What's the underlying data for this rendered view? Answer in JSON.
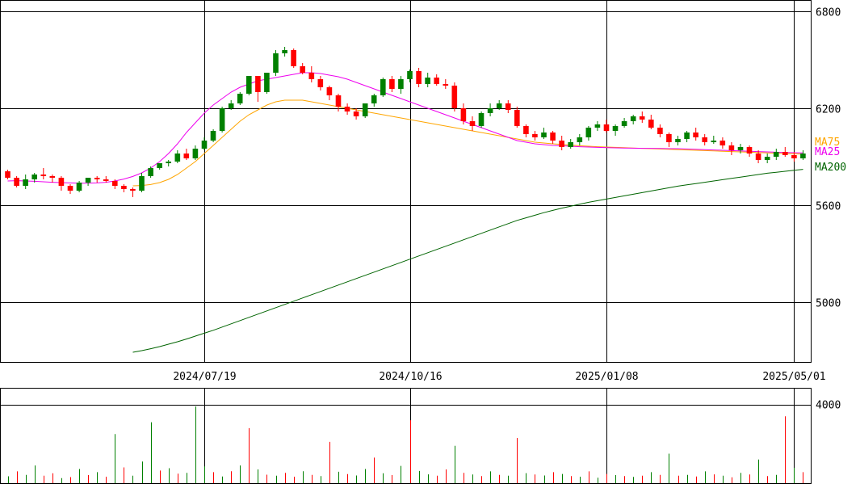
{
  "chart_data": {
    "type": "candlestick",
    "price_axis": {
      "ticks": [
        6800,
        6200,
        5600,
        5000
      ],
      "ylim": [
        4630,
        6870
      ]
    },
    "date_axis": {
      "tick_labels": [
        "2024/07/19",
        "2024/10/16",
        "2025/01/08",
        "2025/05/01"
      ]
    },
    "volume_axis": {
      "ticks": [
        4000
      ],
      "ylim": [
        0,
        4850
      ]
    },
    "colors": {
      "up": "#008000",
      "down": "#ff0000",
      "ma25": "#ee00ee",
      "ma75": "#ffa500",
      "ma200": "#006400",
      "grid": "#000000"
    },
    "series": [
      {
        "name": "MA75",
        "color": "#ffa500"
      },
      {
        "name": "MA25",
        "color": "#ee00ee"
      },
      {
        "name": "MA200",
        "color": "#006400"
      }
    ],
    "candles": [
      [
        5810,
        5770,
        5820,
        5760
      ],
      [
        5770,
        5720,
        5780,
        5710
      ],
      [
        5720,
        5760,
        5790,
        5700
      ],
      [
        5760,
        5790,
        5800,
        5740
      ],
      [
        5790,
        5780,
        5830,
        5760
      ],
      [
        5780,
        5770,
        5790,
        5740
      ],
      [
        5770,
        5720,
        5780,
        5690
      ],
      [
        5720,
        5690,
        5730,
        5670
      ],
      [
        5690,
        5740,
        5750,
        5680
      ],
      [
        5740,
        5770,
        5770,
        5720
      ],
      [
        5770,
        5760,
        5780,
        5740
      ],
      [
        5760,
        5750,
        5780,
        5740
      ],
      [
        5750,
        5720,
        5760,
        5700
      ],
      [
        5720,
        5700,
        5730,
        5680
      ],
      [
        5700,
        5690,
        5710,
        5650
      ],
      [
        5690,
        5780,
        5800,
        5680
      ],
      [
        5780,
        5830,
        5840,
        5770
      ],
      [
        5830,
        5860,
        5860,
        5820
      ],
      [
        5860,
        5870,
        5880,
        5840
      ],
      [
        5870,
        5920,
        5940,
        5860
      ],
      [
        5920,
        5890,
        5950,
        5880
      ],
      [
        5890,
        5950,
        5970,
        5880
      ],
      [
        5950,
        6000,
        6020,
        5940
      ],
      [
        6000,
        6060,
        6070,
        5990
      ],
      [
        6060,
        6200,
        6210,
        6050
      ],
      [
        6200,
        6230,
        6250,
        6190
      ],
      [
        6230,
        6290,
        6300,
        6220
      ],
      [
        6290,
        6400,
        6400,
        6280
      ],
      [
        6400,
        6300,
        6400,
        6240
      ],
      [
        6300,
        6420,
        6420,
        6290
      ],
      [
        6420,
        6540,
        6560,
        6400
      ],
      [
        6540,
        6560,
        6580,
        6520
      ],
      [
        6560,
        6460,
        6570,
        6450
      ],
      [
        6460,
        6420,
        6480,
        6410
      ],
      [
        6420,
        6380,
        6460,
        6360
      ],
      [
        6380,
        6330,
        6400,
        6310
      ],
      [
        6330,
        6280,
        6340,
        6250
      ],
      [
        6280,
        6210,
        6290,
        6180
      ],
      [
        6210,
        6180,
        6230,
        6160
      ],
      [
        6180,
        6150,
        6200,
        6130
      ],
      [
        6150,
        6230,
        6230,
        6140
      ],
      [
        6230,
        6280,
        6290,
        6210
      ],
      [
        6280,
        6380,
        6390,
        6270
      ],
      [
        6380,
        6320,
        6400,
        6300
      ],
      [
        6320,
        6380,
        6400,
        6290
      ],
      [
        6380,
        6430,
        6440,
        6360
      ],
      [
        6430,
        6350,
        6450,
        6330
      ],
      [
        6350,
        6390,
        6420,
        6330
      ],
      [
        6390,
        6350,
        6410,
        6340
      ],
      [
        6350,
        6340,
        6380,
        6320
      ],
      [
        6340,
        6200,
        6360,
        6180
      ],
      [
        6200,
        6120,
        6230,
        6100
      ],
      [
        6120,
        6090,
        6150,
        6060
      ],
      [
        6090,
        6170,
        6180,
        6080
      ],
      [
        6170,
        6200,
        6230,
        6150
      ],
      [
        6200,
        6230,
        6250,
        6190
      ],
      [
        6230,
        6190,
        6250,
        6170
      ],
      [
        6190,
        6090,
        6210,
        6080
      ],
      [
        6090,
        6040,
        6100,
        6020
      ],
      [
        6040,
        6020,
        6060,
        6000
      ],
      [
        6020,
        6050,
        6080,
        6010
      ],
      [
        6050,
        6000,
        6060,
        5980
      ],
      [
        6000,
        5960,
        6030,
        5940
      ],
      [
        5960,
        5990,
        6010,
        5950
      ],
      [
        5990,
        6020,
        6040,
        5970
      ],
      [
        6020,
        6080,
        6090,
        6000
      ],
      [
        6080,
        6100,
        6120,
        6060
      ],
      [
        6100,
        6060,
        6130,
        6050
      ],
      [
        6060,
        6090,
        6100,
        6030
      ],
      [
        6090,
        6120,
        6140,
        6080
      ],
      [
        6120,
        6150,
        6160,
        6100
      ],
      [
        6150,
        6130,
        6180,
        6110
      ],
      [
        6130,
        6080,
        6160,
        6070
      ],
      [
        6080,
        6040,
        6100,
        6020
      ],
      [
        6040,
        5990,
        6050,
        5960
      ],
      [
        5990,
        6010,
        6030,
        5970
      ],
      [
        6010,
        6050,
        6060,
        5990
      ],
      [
        6050,
        6020,
        6080,
        6000
      ],
      [
        6020,
        5990,
        6040,
        5970
      ],
      [
        5990,
        6000,
        6030,
        5980
      ],
      [
        6000,
        5970,
        6020,
        5950
      ],
      [
        5970,
        5940,
        5990,
        5910
      ],
      [
        5940,
        5960,
        5980,
        5920
      ],
      [
        5960,
        5920,
        5970,
        5900
      ],
      [
        5920,
        5880,
        5940,
        5860
      ],
      [
        5880,
        5900,
        5920,
        5860
      ],
      [
        5900,
        5930,
        5950,
        5880
      ],
      [
        5930,
        5910,
        5960,
        5900
      ],
      [
        5910,
        5890,
        5930,
        5870
      ],
      [
        5890,
        5920,
        5940,
        5880
      ]
    ],
    "volumes": [
      [
        350,
        1
      ],
      [
        600,
        0
      ],
      [
        420,
        1
      ],
      [
        900,
        1
      ],
      [
        380,
        0
      ],
      [
        500,
        0
      ],
      [
        260,
        1
      ],
      [
        310,
        0
      ],
      [
        720,
        1
      ],
      [
        410,
        0
      ],
      [
        560,
        1
      ],
      [
        330,
        0
      ],
      [
        2500,
        1
      ],
      [
        800,
        0
      ],
      [
        380,
        1
      ],
      [
        1100,
        1
      ],
      [
        3100,
        1
      ],
      [
        640,
        0
      ],
      [
        760,
        1
      ],
      [
        480,
        0
      ],
      [
        520,
        1
      ],
      [
        3900,
        1
      ],
      [
        850,
        1
      ],
      [
        560,
        0
      ],
      [
        340,
        1
      ],
      [
        610,
        0
      ],
      [
        900,
        1
      ],
      [
        2800,
        0
      ],
      [
        700,
        1
      ],
      [
        430,
        0
      ],
      [
        380,
        1
      ],
      [
        520,
        0
      ],
      [
        330,
        0
      ],
      [
        610,
        1
      ],
      [
        420,
        0
      ],
      [
        360,
        1
      ],
      [
        2100,
        0
      ],
      [
        580,
        1
      ],
      [
        460,
        0
      ],
      [
        390,
        1
      ],
      [
        720,
        1
      ],
      [
        1300,
        0
      ],
      [
        500,
        1
      ],
      [
        410,
        0
      ],
      [
        880,
        1
      ],
      [
        3200,
        0
      ],
      [
        620,
        1
      ],
      [
        450,
        1
      ],
      [
        380,
        0
      ],
      [
        700,
        0
      ],
      [
        1900,
        1
      ],
      [
        520,
        0
      ],
      [
        440,
        1
      ],
      [
        360,
        0
      ],
      [
        600,
        1
      ],
      [
        420,
        0
      ],
      [
        380,
        1
      ],
      [
        2300,
        0
      ],
      [
        510,
        1
      ],
      [
        440,
        0
      ],
      [
        390,
        1
      ],
      [
        560,
        0
      ],
      [
        470,
        1
      ],
      [
        360,
        0
      ],
      [
        330,
        1
      ],
      [
        600,
        0
      ],
      [
        280,
        1
      ],
      [
        470,
        0
      ],
      [
        410,
        1
      ],
      [
        360,
        0
      ],
      [
        320,
        1
      ],
      [
        380,
        0
      ],
      [
        560,
        1
      ],
      [
        420,
        0
      ],
      [
        1500,
        1
      ],
      [
        380,
        0
      ],
      [
        420,
        1
      ],
      [
        340,
        0
      ],
      [
        600,
        1
      ],
      [
        450,
        0
      ],
      [
        380,
        1
      ],
      [
        300,
        0
      ],
      [
        520,
        1
      ],
      [
        440,
        0
      ],
      [
        1200,
        1
      ],
      [
        360,
        0
      ],
      [
        420,
        1
      ],
      [
        3400,
        0
      ],
      [
        780,
        1
      ],
      [
        560,
        0
      ]
    ],
    "ma25": [
      5750,
      5752,
      5750,
      5748,
      5745,
      5742,
      5740,
      5738,
      5736,
      5736,
      5738,
      5742,
      5750,
      5762,
      5778,
      5800,
      5830,
      5870,
      5920,
      5980,
      6050,
      6110,
      6170,
      6220,
      6260,
      6300,
      6330,
      6350,
      6370,
      6380,
      6390,
      6400,
      6410,
      6420,
      6420,
      6415,
      6405,
      6395,
      6380,
      6360,
      6340,
      6320,
      6300,
      6280,
      6260,
      6240,
      6220,
      6200,
      6180,
      6160,
      6140,
      6120,
      6100,
      6080,
      6060,
      6040,
      6020,
      6000,
      5990,
      5980,
      5975,
      5970,
      5968,
      5965,
      5962,
      5960,
      5958,
      5956,
      5955,
      5954,
      5953,
      5952,
      5952,
      5951,
      5950,
      5950,
      5948,
      5946,
      5944,
      5942,
      5940,
      5938,
      5936,
      5934,
      5932,
      5930,
      5928,
      5926,
      5925,
      5924
    ],
    "ma75": [
      null,
      null,
      null,
      null,
      null,
      null,
      null,
      null,
      null,
      null,
      null,
      null,
      null,
      null,
      5720,
      5722,
      5728,
      5740,
      5760,
      5790,
      5830,
      5870,
      5920,
      5970,
      6020,
      6070,
      6120,
      6160,
      6190,
      6220,
      6240,
      6250,
      6250,
      6250,
      6240,
      6230,
      6220,
      6210,
      6200,
      6190,
      6180,
      6170,
      6160,
      6150,
      6140,
      6130,
      6120,
      6110,
      6100,
      6090,
      6080,
      6070,
      6060,
      6050,
      6040,
      6030,
      6020,
      6010,
      6000,
      5990,
      5985,
      5980,
      5976,
      5972,
      5968,
      5965,
      5962,
      5960,
      5958,
      5956,
      5954,
      5952,
      5950,
      5948,
      5946,
      5944,
      5942,
      5940,
      5938,
      5936,
      5934,
      5932,
      5930,
      5928,
      5926,
      5924,
      5922,
      5920,
      5918,
      5916
    ],
    "ma200": [
      null,
      null,
      null,
      null,
      null,
      null,
      null,
      null,
      null,
      null,
      null,
      null,
      null,
      null,
      4690,
      4700,
      4712,
      4725,
      4740,
      4755,
      4772,
      4790,
      4808,
      4826,
      4846,
      4866,
      4886,
      4906,
      4926,
      4946,
      4966,
      4986,
      5006,
      5026,
      5046,
      5066,
      5086,
      5106,
      5126,
      5146,
      5166,
      5186,
      5206,
      5226,
      5246,
      5266,
      5286,
      5306,
      5326,
      5346,
      5366,
      5386,
      5406,
      5426,
      5446,
      5466,
      5486,
      5506,
      5522,
      5538,
      5554,
      5568,
      5582,
      5594,
      5606,
      5618,
      5628,
      5638,
      5648,
      5658,
      5668,
      5678,
      5688,
      5698,
      5708,
      5718,
      5726,
      5734,
      5742,
      5750,
      5758,
      5766,
      5774,
      5782,
      5790,
      5798,
      5804,
      5810,
      5816,
      5822
    ]
  }
}
